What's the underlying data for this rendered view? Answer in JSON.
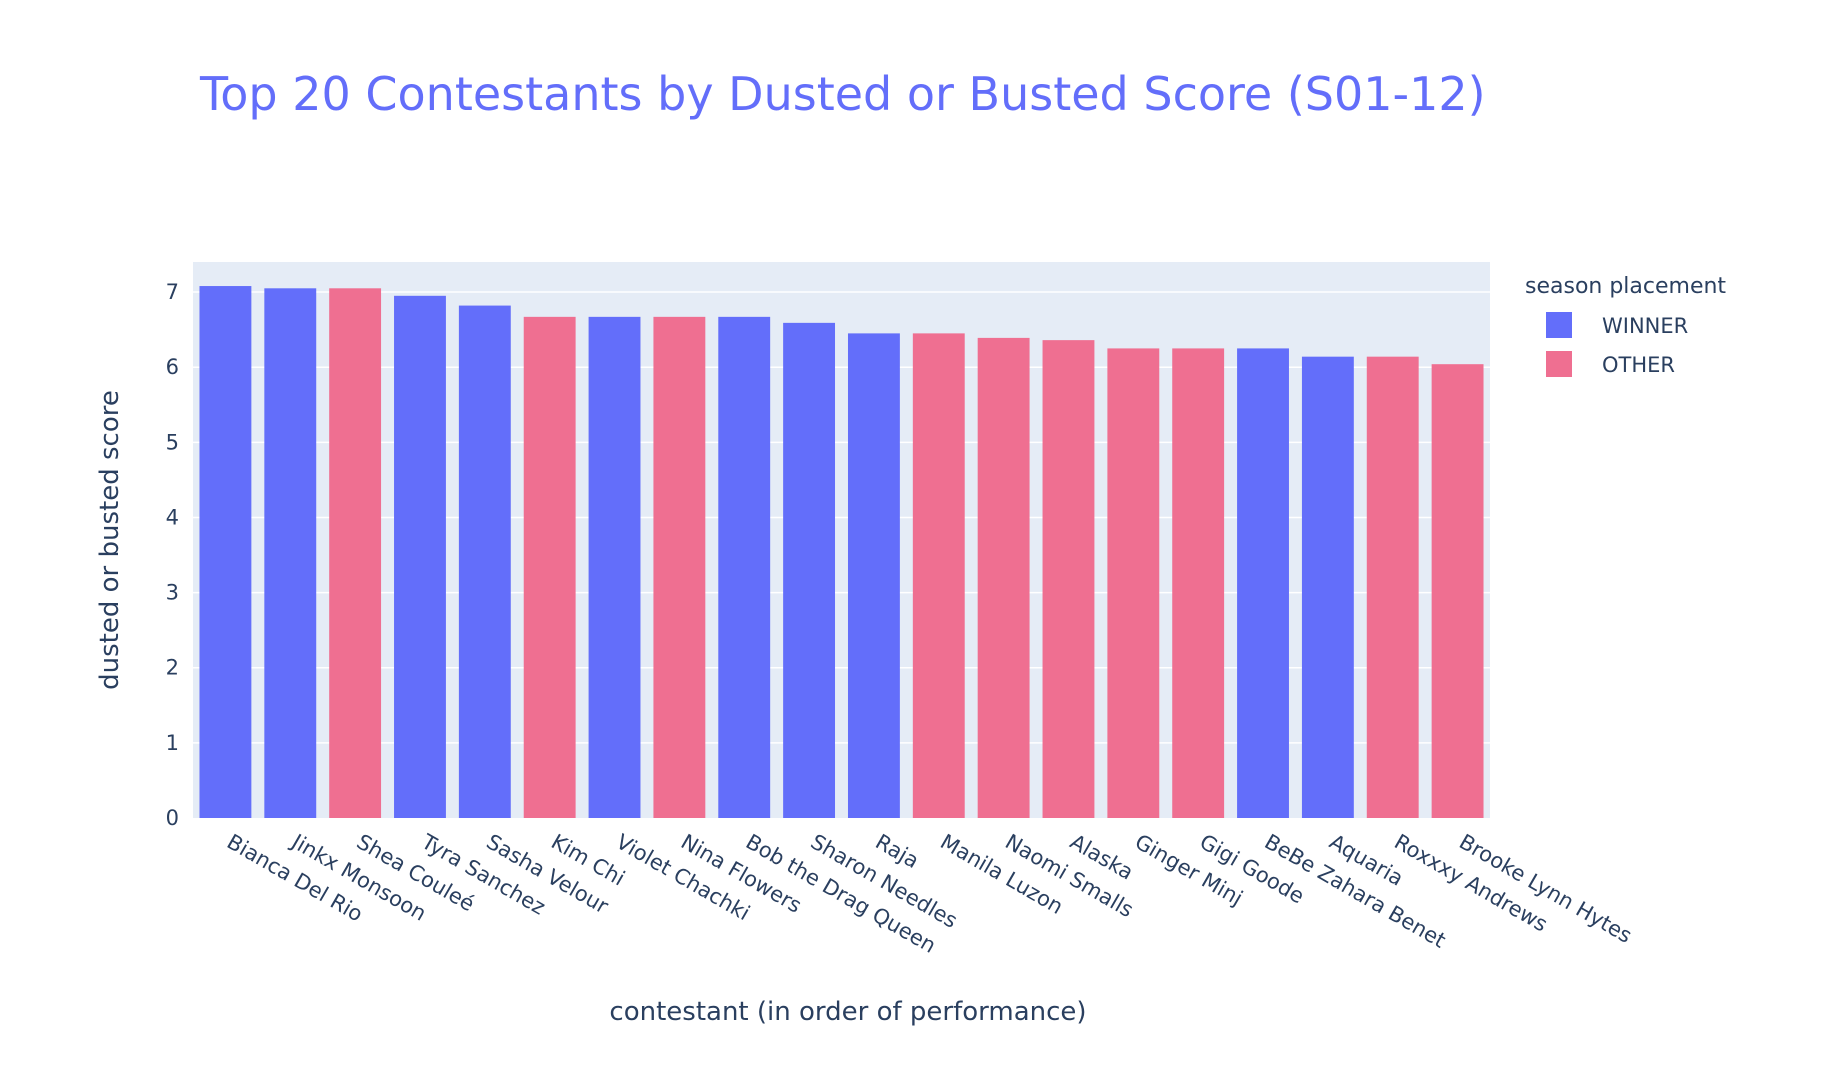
{
  "chart_data": {
    "type": "bar",
    "title": "Top 20 Contestants by Dusted or Busted Score (S01-12)",
    "xlabel": "contestant (in order of performance)",
    "ylabel": "dusted or busted score",
    "ylim": [
      0,
      7.4
    ],
    "yticks": [
      "0",
      "1",
      "2",
      "3",
      "4",
      "5",
      "6",
      "7"
    ],
    "grid": true,
    "legend": {
      "title": "season placement",
      "placement": "right",
      "entries": [
        {
          "name": "WINNER",
          "color": "#636efa"
        },
        {
          "name": "OTHER",
          "color": "#ef6f91"
        }
      ]
    },
    "categories": [
      "Bianca Del Rio",
      "Jinkx Monsoon",
      "Shea Couleé",
      "Tyra Sanchez",
      "Sasha Velour",
      "Kim Chi",
      "Violet Chachki",
      "Nina Flowers",
      "Bob the Drag Queen",
      "Sharon Needles",
      "Raja",
      "Manila Luzon",
      "Naomi Smalls",
      "Alaska",
      "Ginger Minj",
      "Gigi Goode",
      "BeBe Zahara Benet",
      "Aquaria",
      "Roxxxy Andrews",
      "Brooke Lynn Hytes"
    ],
    "values": [
      7.08,
      7.05,
      7.05,
      6.95,
      6.82,
      6.67,
      6.67,
      6.67,
      6.67,
      6.59,
      6.45,
      6.45,
      6.39,
      6.36,
      6.25,
      6.25,
      6.25,
      6.14,
      6.14,
      6.04
    ],
    "placement": [
      "WINNER",
      "WINNER",
      "OTHER",
      "WINNER",
      "WINNER",
      "OTHER",
      "WINNER",
      "OTHER",
      "WINNER",
      "WINNER",
      "WINNER",
      "OTHER",
      "OTHER",
      "OTHER",
      "OTHER",
      "OTHER",
      "WINNER",
      "WINNER",
      "OTHER",
      "OTHER"
    ]
  }
}
